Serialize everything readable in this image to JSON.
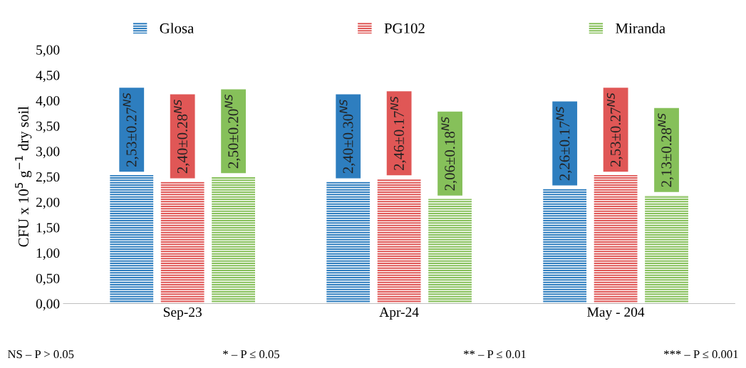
{
  "chart_data": {
    "type": "bar",
    "ylabel": "CFU x 10$^{5}$ g$^{−1}$ dry soil",
    "categories": [
      "Sep-23",
      "Apr-24",
      "May - 204"
    ],
    "series": [
      {
        "name": "Glosa",
        "color": "#2e7ebf",
        "values": [
          2.53,
          2.4,
          2.26
        ],
        "value_labels": [
          "2,53±0.27$^{NS}$",
          "2,40±0.30$^{NS}$",
          "2,26±0.17$^{NS}$"
        ]
      },
      {
        "name": "PG102",
        "color": "#e05756",
        "values": [
          2.4,
          2.46,
          2.53
        ],
        "value_labels": [
          "2,40±0.28$^{NS}$",
          "2,46±0.17$^{NS}$",
          "2,53±0.27$^{NS}$"
        ]
      },
      {
        "name": "Miranda",
        "color": "#86c05a",
        "values": [
          2.5,
          2.06,
          2.13
        ],
        "value_labels": [
          "2,50±0.20$^{NS}$",
          "2,06±0.18$^{NS}$",
          "2,13±0.28$^{NS}$"
        ]
      }
    ],
    "ylim": [
      0,
      5
    ],
    "yticks": [
      {
        "value": 0,
        "label": "0,00"
      },
      {
        "value": 0.5,
        "label": "0,50"
      },
      {
        "value": 1,
        "label": "1,00"
      },
      {
        "value": 1.5,
        "label": "1,50"
      },
      {
        "value": 2,
        "label": "2,00"
      },
      {
        "value": 2.5,
        "label": "2,50"
      },
      {
        "value": 3,
        "label": "3,00"
      },
      {
        "value": 3.5,
        "label": "3,50"
      },
      {
        "value": 4,
        "label": "4,00"
      },
      {
        "value": 4.5,
        "label": "4,50"
      },
      {
        "value": 5,
        "label": "5,00"
      }
    ],
    "grid": false,
    "legend": "top",
    "annotations": [
      "NS – P > 0.05",
      "* – P ≤ 0.05",
      "** – P ≤ 0.01",
      "*** – P ≤ 0.001"
    ]
  }
}
